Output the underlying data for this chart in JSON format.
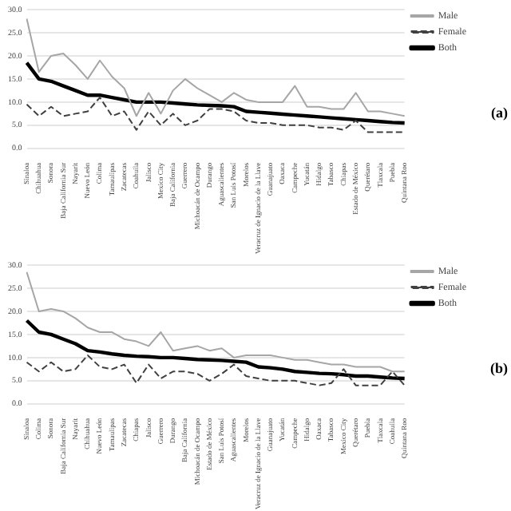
{
  "chart_data": [
    {
      "type": "line",
      "categories": [
        "Sinaloa",
        "Chihuahua",
        "Sonora",
        "Baja California Sur",
        "Nayarit",
        "Nuevo León",
        "Colima",
        "Tamaulipas",
        "Zacatecas",
        "Coahuila",
        "Jalisco",
        "Mexico City",
        "Baja California",
        "Guerrero",
        "Michoacán de Ocampo",
        "Durango",
        "Aguascalientes",
        "San Luis Potosí",
        "Morelos",
        "Veracruz de Ignacio de la Llave",
        "Guanajuato",
        "Oaxaca",
        "Campeche",
        "Yucatán",
        "Hidalgo",
        "Tabasco",
        "Chiapas",
        "Estado de México",
        "Querétaro",
        "Tlaxcala",
        "Puebla",
        "Quintana Roo"
      ],
      "series": [
        {
          "name": "Male",
          "color": "#a6a6a6",
          "line_style": "solid",
          "values": [
            28,
            16.5,
            20,
            20.5,
            18,
            15,
            19,
            15.5,
            13,
            7,
            12,
            7.5,
            12.5,
            15,
            13,
            11.5,
            10,
            12,
            10.5,
            10,
            10,
            10,
            13.5,
            9,
            9,
            8.5,
            8.5,
            12,
            8,
            8,
            7.5,
            7
          ]
        },
        {
          "name": "Female",
          "color": "#404040",
          "line_style": "dashed",
          "values": [
            9.5,
            7,
            9,
            7,
            7.5,
            8,
            11,
            7,
            8,
            4,
            8,
            5,
            7.5,
            5,
            6,
            8.5,
            8.5,
            8,
            6,
            5.5,
            5.5,
            5,
            5,
            5,
            4.5,
            4.5,
            4,
            6,
            3.5,
            3.5,
            3.5,
            3.5
          ]
        },
        {
          "name": "Both",
          "color": "#000000",
          "line_style": "solid",
          "values": [
            18.5,
            15,
            14.5,
            13.5,
            12.5,
            11.5,
            11.5,
            11,
            10.5,
            10,
            10,
            10,
            9.8,
            9.6,
            9.4,
            9.3,
            9.2,
            9,
            8,
            7.8,
            7.6,
            7.4,
            7.2,
            7,
            6.8,
            6.6,
            6.4,
            6.2,
            6,
            5.8,
            5.6,
            5.5
          ]
        }
      ],
      "ylim": [
        0,
        30
      ],
      "yticks": [
        {
          "value": 0,
          "label": "0.0"
        },
        {
          "value": 5,
          "label": "5.0"
        },
        {
          "value": 10,
          "label": "10.0"
        },
        {
          "value": 15,
          "label": "15.0"
        },
        {
          "value": 20,
          "label": "20.0"
        },
        {
          "value": 25,
          "label": "25.0"
        },
        {
          "value": 30,
          "label": "30.0"
        }
      ],
      "grid": "y",
      "legend": "top right",
      "marker": "none",
      "annotations": [
        "(a)"
      ]
    },
    {
      "type": "line",
      "categories": [
        "Sinaloa",
        "Colima",
        "Sonora",
        "Baja California Sur",
        "Nayarit",
        "Chihuahua",
        "Nuevo León",
        "Tamaulipas",
        "Zacatecas",
        "Chiapas",
        "Jalisco",
        "Guerrero",
        "Durango",
        "Baja California",
        "Michoacán de Ocampo",
        "Estado de México",
        "San Luis Potosí",
        "Aguascalientes",
        "Morelos",
        "Veracruz de Ignacio de la Llave",
        "Guanajuato",
        "Yucatán",
        "Campeche",
        "Hidalgo",
        "Oaxaca",
        "Tabasco",
        "Mexico City",
        "Querétaro",
        "Puebla",
        "Tlaxcala",
        "Coahuila",
        "Quintana Roo"
      ],
      "series": [
        {
          "name": "Male",
          "color": "#a6a6a6",
          "line_style": "solid",
          "values": [
            28.5,
            20,
            20.5,
            20,
            18.5,
            16.5,
            15.5,
            15.5,
            14,
            13.5,
            12.5,
            15.5,
            11.5,
            12,
            12.5,
            11.5,
            12,
            10,
            10.5,
            10.5,
            10.5,
            10,
            9.5,
            9.5,
            9,
            8.5,
            8.5,
            8,
            8,
            8,
            7,
            7
          ]
        },
        {
          "name": "Female",
          "color": "#404040",
          "line_style": "dashed",
          "values": [
            9,
            7,
            9,
            7,
            7.5,
            10.5,
            8,
            7.5,
            8.5,
            4.5,
            8.5,
            5.5,
            7,
            7,
            6.5,
            5,
            6.5,
            8.5,
            6,
            5.5,
            5,
            5,
            5,
            4.5,
            4,
            4.5,
            7.5,
            4,
            4,
            4,
            7,
            4
          ]
        },
        {
          "name": "Both",
          "color": "#000000",
          "line_style": "solid",
          "values": [
            18,
            15.5,
            15,
            14,
            13,
            11.5,
            11.2,
            10.8,
            10.5,
            10.3,
            10.2,
            10,
            10,
            9.8,
            9.6,
            9.5,
            9.4,
            9.2,
            9,
            8,
            7.8,
            7.5,
            7,
            6.8,
            6.6,
            6.5,
            6.3,
            6,
            6,
            5.8,
            5.6,
            5.5
          ]
        }
      ],
      "ylim": [
        0,
        30
      ],
      "yticks": [
        {
          "value": 0,
          "label": "0.0"
        },
        {
          "value": 5,
          "label": "5.0"
        },
        {
          "value": 10,
          "label": "10.0"
        },
        {
          "value": 15,
          "label": "15.0"
        },
        {
          "value": 20,
          "label": "20.0"
        },
        {
          "value": 25,
          "label": "25.0"
        },
        {
          "value": 30,
          "label": "30.0"
        }
      ],
      "grid": "y",
      "legend": "top right",
      "marker": "none",
      "annotations": [
        "(b)"
      ]
    }
  ]
}
